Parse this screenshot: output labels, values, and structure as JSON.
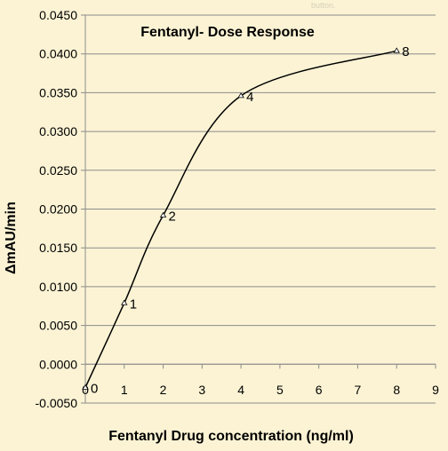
{
  "chart_data": {
    "type": "scatter",
    "title": "Fentanyl- Dose Response",
    "xlabel": "Fentanyl Drug concentration (ng/ml)",
    "ylabel": "ΔmAU/min",
    "xlim": [
      0,
      9
    ],
    "ylim": [
      -0.005,
      0.045
    ],
    "x_ticks": [
      "0",
      "1",
      "2",
      "3",
      "4",
      "5",
      "6",
      "7",
      "8",
      "9"
    ],
    "y_ticks": [
      "-0.0050",
      "0.0000",
      "0.0050",
      "0.0100",
      "0.0150",
      "0.0200",
      "0.0250",
      "0.0300",
      "0.0350",
      "0.0400",
      "0.0450"
    ],
    "grid": "horizontal",
    "smooth_line": true,
    "series": [
      {
        "x": [
          0,
          1,
          2,
          4,
          8
        ],
        "y": [
          -0.003,
          0.0079,
          0.0192,
          0.0346,
          0.0404
        ],
        "point_labels": [
          "0",
          "1",
          "2",
          "4",
          "8"
        ]
      }
    ],
    "colors": {
      "background": "#fbf3d4",
      "line": "#000000",
      "grid": "#8c8c8c"
    }
  },
  "overlay_text": "button."
}
